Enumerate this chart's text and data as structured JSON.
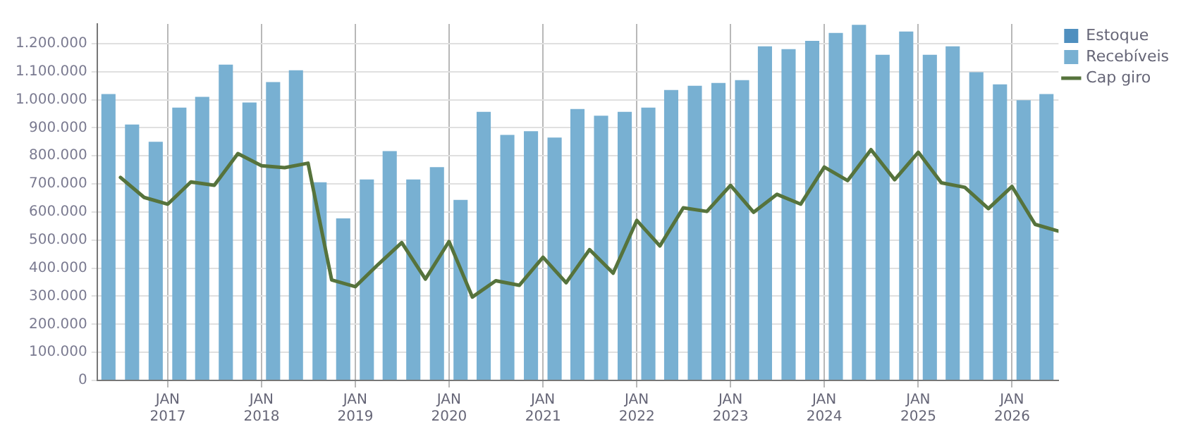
{
  "chart_data": {
    "type": "bar",
    "stacked": true,
    "grid": true,
    "legend": "right",
    "xlim": [
      "2016-04-01",
      "2026-07-01"
    ],
    "xticks": [
      {
        "value": "2017-01-01",
        "label": "JAN\n2017"
      },
      {
        "value": "2018-01-01",
        "label": "JAN\n2018"
      },
      {
        "value": "2019-01-01",
        "label": "JAN\n2019"
      },
      {
        "value": "2020-01-01",
        "label": "JAN\n2020"
      },
      {
        "value": "2021-01-01",
        "label": "JAN\n2021"
      },
      {
        "value": "2022-01-01",
        "label": "JAN\n2022"
      },
      {
        "value": "2023-01-01",
        "label": "JAN\n2023"
      },
      {
        "value": "2024-01-01",
        "label": "JAN\n2024"
      },
      {
        "value": "2025-01-01",
        "label": "JAN\n2025"
      },
      {
        "value": "2026-01-01",
        "label": "JAN\n2026"
      }
    ],
    "ylim": [
      0,
      1270000
    ],
    "yticks": [
      0,
      {
        "value": 100000,
        "label": "100.000"
      },
      {
        "value": 200000,
        "label": "200.000"
      },
      {
        "value": 300000,
        "label": "300.000"
      },
      {
        "value": 400000,
        "label": "400.000"
      },
      {
        "value": 500000,
        "label": "500.000"
      },
      {
        "value": 600000,
        "label": "600.000"
      },
      {
        "value": 700000,
        "label": "700.000"
      },
      {
        "value": 800000,
        "label": "800.000"
      },
      {
        "value": 900000,
        "label": "900.000"
      },
      {
        "value": 1000000,
        "label": "1.000.000"
      },
      {
        "value": 1100000,
        "label": "1.100.000"
      },
      {
        "value": 1200000,
        "label": "1.200.000"
      }
    ],
    "x": [
      "2016-05-15",
      "2016-08-15",
      "2016-11-15",
      "2017-02-15",
      "2017-05-15",
      "2017-08-15",
      "2017-11-15",
      "2018-02-15",
      "2018-05-15",
      "2018-08-15",
      "2018-11-15",
      "2019-02-15",
      "2019-05-15",
      "2019-08-15",
      "2019-11-15",
      "2020-02-15",
      "2020-05-15",
      "2020-08-15",
      "2020-11-15",
      "2021-02-15",
      "2021-05-15",
      "2021-08-15",
      "2021-11-15",
      "2022-02-15",
      "2022-05-15",
      "2022-08-15",
      "2022-11-15",
      "2023-02-15",
      "2023-05-15",
      "2023-08-15",
      "2023-11-15",
      "2024-02-15",
      "2024-05-15",
      "2024-08-15",
      "2024-11-15",
      "2025-02-15",
      "2025-05-15",
      "2025-08-15",
      "2025-11-15",
      "2026-02-15",
      "2026-05-15"
    ],
    "series": [
      {
        "name": "Estoque",
        "color": "#4f8fbf",
        "values": [
          null,
          null,
          null,
          null,
          null,
          null,
          null,
          null,
          null,
          null,
          null,
          null,
          null,
          null,
          null,
          null,
          null,
          null,
          null,
          null,
          null,
          null,
          null,
          null,
          null,
          null,
          null,
          null,
          null,
          null,
          null,
          null,
          null,
          null,
          null,
          null,
          null,
          null,
          null,
          null,
          null
        ]
      },
      {
        "name": "Recebíveis",
        "color": "#78b0d2",
        "values": [
          1020000,
          912000,
          850000,
          972000,
          1010000,
          1125000,
          990000,
          1063000,
          1105000,
          706000,
          577000,
          716000,
          817000,
          716000,
          760000,
          643000,
          957000,
          875000,
          888000,
          865000,
          967000,
          943000,
          957000,
          972000,
          1035000,
          1050000,
          1060000,
          1070000,
          1190000,
          1180000,
          1210000,
          1238000,
          1267000,
          1160000,
          1243000,
          1160000,
          1190000,
          1098000,
          1055000,
          998000,
          1020000
        ]
      },
      {
        "name": "Cap giro",
        "type": "line",
        "color": "#56733c",
        "x": [
          "2016-07-01",
          "2016-10-01",
          "2017-01-01",
          "2017-04-01",
          "2017-07-01",
          "2017-10-01",
          "2018-01-01",
          "2018-04-01",
          "2018-07-01",
          "2018-10-01",
          "2019-01-01",
          "2019-04-01",
          "2019-07-01",
          "2019-10-01",
          "2020-01-01",
          "2020-04-01",
          "2020-07-01",
          "2020-10-01",
          "2021-01-01",
          "2021-04-01",
          "2021-07-01",
          "2021-10-01",
          "2022-01-01",
          "2022-04-01",
          "2022-07-01",
          "2022-10-01",
          "2023-01-01",
          "2023-04-01",
          "2023-07-01",
          "2023-10-01",
          "2024-01-01",
          "2024-04-01",
          "2024-07-01",
          "2024-10-01",
          "2025-01-01",
          "2025-04-01",
          "2025-07-01",
          "2025-10-01",
          "2026-01-01",
          "2026-04-01",
          "2026-07-01"
        ],
        "values": [
          723000,
          652000,
          628000,
          707000,
          695000,
          808000,
          765000,
          758000,
          774000,
          358000,
          334000,
          414000,
          491000,
          361000,
          495000,
          297000,
          355000,
          339000,
          439000,
          348000,
          466000,
          382000,
          570000,
          479000,
          615000,
          602000,
          695000,
          599000,
          663000,
          628000,
          760000,
          712000,
          822000,
          715000,
          813000,
          704000,
          688000,
          612000,
          691000,
          556000,
          532000
        ]
      }
    ]
  }
}
